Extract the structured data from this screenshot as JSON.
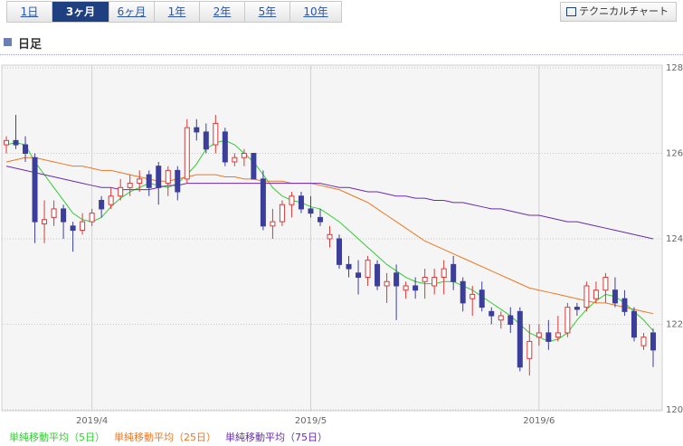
{
  "tabs": [
    "1日",
    "3ヶ月",
    "6ヶ月",
    "1年",
    "2年",
    "5年",
    "10年"
  ],
  "active_tab": 1,
  "button": "テクニカルチャート",
  "section_title": "日足",
  "chart_data": {
    "type": "candlestick",
    "ylim": [
      120,
      128
    ],
    "yticks": [
      120,
      122,
      124,
      126,
      128
    ],
    "grid": true,
    "up_color": "#d83a3a",
    "down_color": "#3b3f9a",
    "categories": [
      null,
      null,
      null,
      null,
      null,
      null,
      null,
      null,
      null,
      "2019/4",
      null,
      null,
      null,
      null,
      null,
      null,
      null,
      null,
      null,
      null,
      null,
      null,
      null,
      null,
      null,
      null,
      null,
      null,
      null,
      null,
      null,
      null,
      "2019/5",
      null,
      null,
      null,
      null,
      null,
      null,
      null,
      null,
      null,
      null,
      null,
      null,
      null,
      null,
      null,
      null,
      null,
      null,
      null,
      null,
      null,
      null,
      null,
      "2019/6",
      null,
      null,
      null,
      null,
      null,
      null,
      null,
      null,
      null,
      null,
      null,
      null
    ],
    "open": [
      126.2,
      126.3,
      126.2,
      125.9,
      124.35,
      124.5,
      124.7,
      124.3,
      124.2,
      124.4,
      124.9,
      124.8,
      125.0,
      125.2,
      125.3,
      125.5,
      125.7,
      125.3,
      125.6,
      125.4,
      126.6,
      126.5,
      126.2,
      126.5,
      125.8,
      125.9,
      126.0,
      125.4,
      124.3,
      124.4,
      124.8,
      125.0,
      124.7,
      124.5,
      124.0,
      124.0,
      123.4,
      123.2,
      123.1,
      123.4,
      122.9,
      123.2,
      122.8,
      122.9,
      123.0,
      122.9,
      123.1,
      123.4,
      123.0,
      122.6,
      122.8,
      122.3,
      122.1,
      122.2,
      122.3,
      121.2,
      121.7,
      121.8,
      121.7,
      121.8,
      122.4,
      122.4,
      122.6,
      122.8,
      122.8,
      122.6,
      122.3,
      121.5,
      121.8
    ],
    "high": [
      126.4,
      126.9,
      126.4,
      126.0,
      124.9,
      124.9,
      124.8,
      124.4,
      124.6,
      124.7,
      125.0,
      125.2,
      125.4,
      125.5,
      125.6,
      125.6,
      125.8,
      125.7,
      125.7,
      126.8,
      126.8,
      126.7,
      126.9,
      126.6,
      126.0,
      126.1,
      126.0,
      125.6,
      124.7,
      124.9,
      125.1,
      125.1,
      125.0,
      124.7,
      124.3,
      124.1,
      123.6,
      123.5,
      123.6,
      123.5,
      123.2,
      123.4,
      123.0,
      123.1,
      123.3,
      123.3,
      123.5,
      123.6,
      123.1,
      122.9,
      123.0,
      122.4,
      122.3,
      122.4,
      122.4,
      122.0,
      122.0,
      122.1,
      122.2,
      122.5,
      122.5,
      123.0,
      123.0,
      123.2,
      123.1,
      122.8,
      122.4,
      121.8,
      121.9
    ],
    "low": [
      126.0,
      126.1,
      125.8,
      123.9,
      123.9,
      124.3,
      124.0,
      123.7,
      124.1,
      124.3,
      124.5,
      124.7,
      124.9,
      125.0,
      125.1,
      125.0,
      124.8,
      125.0,
      124.9,
      125.3,
      126.3,
      126.0,
      126.0,
      125.7,
      125.7,
      125.7,
      125.4,
      124.2,
      124.0,
      124.3,
      124.5,
      124.6,
      124.5,
      124.3,
      123.8,
      123.3,
      123.1,
      122.7,
      122.9,
      122.8,
      122.5,
      122.1,
      122.6,
      122.6,
      122.6,
      122.7,
      122.7,
      122.8,
      122.3,
      122.2,
      122.3,
      122.0,
      121.9,
      121.8,
      120.9,
      120.8,
      121.5,
      121.4,
      121.6,
      121.7,
      122.2,
      122.3,
      122.5,
      122.5,
      122.4,
      122.2,
      121.6,
      121.4,
      121.0
    ],
    "close": [
      126.3,
      126.2,
      126.0,
      124.4,
      124.45,
      124.7,
      124.4,
      124.2,
      124.4,
      124.6,
      124.7,
      125.0,
      125.2,
      125.3,
      125.4,
      125.2,
      125.2,
      125.6,
      125.1,
      126.6,
      126.5,
      126.1,
      126.7,
      125.8,
      125.9,
      126.0,
      125.4,
      124.3,
      124.4,
      124.8,
      125.0,
      124.7,
      124.6,
      124.4,
      124.1,
      123.4,
      123.3,
      123.1,
      123.5,
      122.9,
      123.0,
      122.9,
      122.9,
      122.8,
      123.1,
      123.1,
      123.3,
      123.0,
      122.5,
      122.7,
      122.4,
      122.2,
      122.2,
      122.0,
      121.0,
      121.6,
      121.8,
      121.6,
      121.8,
      122.4,
      122.35,
      122.9,
      122.8,
      123.1,
      122.5,
      122.3,
      121.7,
      121.7,
      121.4
    ],
    "series": [
      {
        "name": "単純移動平均（5日）",
        "color": "#33cc33",
        "values": [
          126.2,
          126.25,
          126.2,
          125.8,
          125.5,
          125.2,
          124.9,
          124.6,
          124.45,
          124.4,
          124.5,
          124.75,
          124.95,
          125.1,
          125.2,
          125.3,
          125.25,
          125.2,
          125.3,
          125.5,
          125.75,
          126.1,
          126.25,
          126.3,
          126.2,
          126.0,
          125.8,
          125.5,
          125.2,
          125.0,
          124.9,
          124.85,
          124.75,
          124.7,
          124.55,
          124.4,
          124.2,
          124.0,
          123.8,
          123.6,
          123.4,
          123.25,
          123.1,
          123.0,
          122.95,
          122.95,
          123.0,
          123.0,
          122.9,
          122.8,
          122.65,
          122.5,
          122.35,
          122.2,
          122.0,
          121.8,
          121.7,
          121.6,
          121.65,
          121.8,
          122.1,
          122.35,
          122.55,
          122.7,
          122.65,
          122.5,
          122.3,
          122.1,
          121.85
        ]
      },
      {
        "name": "単純移動平均（25日）",
        "color": "#ee7722",
        "values": [
          125.8,
          125.85,
          125.9,
          125.9,
          125.85,
          125.8,
          125.75,
          125.7,
          125.7,
          125.65,
          125.6,
          125.6,
          125.55,
          125.5,
          125.45,
          125.4,
          125.35,
          125.35,
          125.4,
          125.45,
          125.5,
          125.5,
          125.5,
          125.45,
          125.45,
          125.4,
          125.4,
          125.35,
          125.35,
          125.35,
          125.3,
          125.3,
          125.3,
          125.25,
          125.2,
          125.15,
          125.05,
          124.95,
          124.85,
          124.7,
          124.55,
          124.4,
          124.25,
          124.1,
          123.95,
          123.85,
          123.75,
          123.65,
          123.55,
          123.45,
          123.35,
          123.25,
          123.15,
          123.05,
          122.95,
          122.85,
          122.8,
          122.75,
          122.7,
          122.65,
          122.6,
          122.55,
          122.5,
          122.5,
          122.45,
          122.4,
          122.35,
          122.3,
          122.25
        ]
      },
      {
        "name": "単純移動平均（75日）",
        "color": "#6a2ab0",
        "values": [
          125.7,
          125.65,
          125.6,
          125.55,
          125.5,
          125.45,
          125.4,
          125.35,
          125.3,
          125.25,
          125.2,
          125.2,
          125.15,
          125.15,
          125.15,
          125.15,
          125.2,
          125.25,
          125.25,
          125.3,
          125.3,
          125.3,
          125.3,
          125.3,
          125.3,
          125.3,
          125.3,
          125.3,
          125.3,
          125.3,
          125.3,
          125.3,
          125.3,
          125.3,
          125.25,
          125.2,
          125.2,
          125.15,
          125.1,
          125.1,
          125.05,
          125.0,
          125.0,
          124.95,
          124.95,
          124.9,
          124.9,
          124.85,
          124.85,
          124.8,
          124.75,
          124.7,
          124.7,
          124.65,
          124.6,
          124.55,
          124.55,
          124.5,
          124.45,
          124.4,
          124.4,
          124.35,
          124.3,
          124.25,
          124.2,
          124.15,
          124.1,
          124.05,
          124.0
        ]
      }
    ]
  }
}
